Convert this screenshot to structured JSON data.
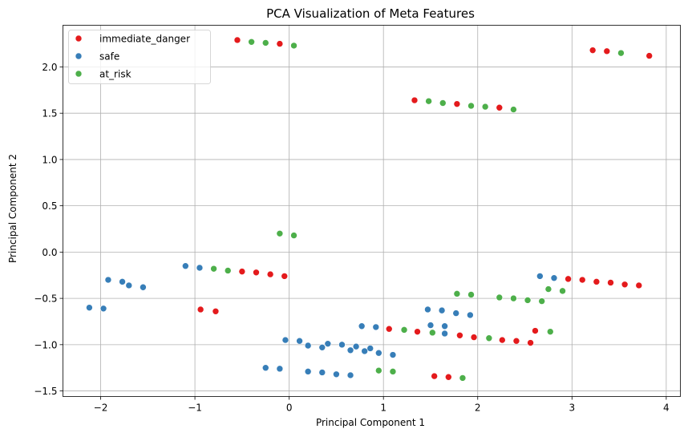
{
  "chart_data": {
    "type": "scatter",
    "title": "PCA Visualization of Meta Features",
    "xlabel": "Principal Component 1",
    "ylabel": "Principal Component 2",
    "xlim": [
      -2.4,
      4.15
    ],
    "ylim": [
      -1.56,
      2.45
    ],
    "xticks": [
      -2,
      -1,
      0,
      1,
      2,
      3,
      4
    ],
    "yticks": [
      -1.5,
      -1.0,
      -0.5,
      0.0,
      0.5,
      1.0,
      1.5,
      2.0
    ],
    "xtick_labels": [
      "−2",
      "−1",
      "0",
      "1",
      "2",
      "3",
      "4"
    ],
    "ytick_labels": [
      "−1.5",
      "−1.0",
      "−0.5",
      "0.0",
      "0.5",
      "1.0",
      "1.5",
      "2.0"
    ],
    "grid": true,
    "legend_position": "top-left",
    "series": [
      {
        "name": "immediate_danger",
        "color": "#e41a1c",
        "points": [
          [
            -0.55,
            2.29
          ],
          [
            -0.1,
            2.25
          ],
          [
            3.22,
            2.18
          ],
          [
            3.37,
            2.17
          ],
          [
            3.82,
            2.12
          ],
          [
            1.33,
            1.64
          ],
          [
            1.78,
            1.6
          ],
          [
            2.23,
            1.56
          ],
          [
            -0.5,
            -0.21
          ],
          [
            -0.35,
            -0.22
          ],
          [
            -0.2,
            -0.24
          ],
          [
            -0.05,
            -0.26
          ],
          [
            -0.94,
            -0.62
          ],
          [
            -0.78,
            -0.64
          ],
          [
            2.96,
            -0.29
          ],
          [
            3.11,
            -0.3
          ],
          [
            3.26,
            -0.32
          ],
          [
            3.41,
            -0.33
          ],
          [
            3.56,
            -0.35
          ],
          [
            3.71,
            -0.36
          ],
          [
            1.06,
            -0.83
          ],
          [
            1.36,
            -0.86
          ],
          [
            1.81,
            -0.9
          ],
          [
            1.96,
            -0.92
          ],
          [
            2.26,
            -0.95
          ],
          [
            2.41,
            -0.96
          ],
          [
            2.56,
            -0.98
          ],
          [
            2.61,
            -0.85
          ],
          [
            1.54,
            -1.34
          ],
          [
            1.69,
            -1.35
          ]
        ]
      },
      {
        "name": "safe",
        "color": "#377eb8",
        "points": [
          [
            -2.12,
            -0.6
          ],
          [
            -1.97,
            -0.61
          ],
          [
            -1.92,
            -0.3
          ],
          [
            -1.77,
            -0.32
          ],
          [
            -1.7,
            -0.36
          ],
          [
            -1.55,
            -0.38
          ],
          [
            -1.1,
            -0.15
          ],
          [
            -0.95,
            -0.17
          ],
          [
            2.66,
            -0.26
          ],
          [
            2.81,
            -0.28
          ],
          [
            1.47,
            -0.62
          ],
          [
            1.62,
            -0.63
          ],
          [
            1.77,
            -0.66
          ],
          [
            1.92,
            -0.68
          ],
          [
            1.5,
            -0.79
          ],
          [
            1.65,
            -0.8
          ],
          [
            1.65,
            -0.88
          ],
          [
            0.77,
            -0.8
          ],
          [
            0.92,
            -0.81
          ],
          [
            -0.04,
            -0.95
          ],
          [
            0.11,
            -0.96
          ],
          [
            0.2,
            -1.01
          ],
          [
            0.35,
            -1.03
          ],
          [
            0.41,
            -0.99
          ],
          [
            0.56,
            -1.0
          ],
          [
            0.65,
            -1.06
          ],
          [
            0.71,
            -1.02
          ],
          [
            0.8,
            -1.07
          ],
          [
            0.86,
            -1.04
          ],
          [
            0.95,
            -1.09
          ],
          [
            1.1,
            -1.11
          ],
          [
            -0.25,
            -1.25
          ],
          [
            -0.1,
            -1.26
          ],
          [
            0.2,
            -1.29
          ],
          [
            0.35,
            -1.3
          ],
          [
            0.5,
            -1.32
          ],
          [
            0.65,
            -1.33
          ]
        ]
      },
      {
        "name": "at_risk",
        "color": "#4daf4a",
        "points": [
          [
            -0.4,
            2.27
          ],
          [
            -0.25,
            2.26
          ],
          [
            0.05,
            2.23
          ],
          [
            3.52,
            2.15
          ],
          [
            1.48,
            1.63
          ],
          [
            1.63,
            1.61
          ],
          [
            1.93,
            1.58
          ],
          [
            2.08,
            1.57
          ],
          [
            2.38,
            1.54
          ],
          [
            -0.1,
            0.2
          ],
          [
            0.05,
            0.18
          ],
          [
            -0.8,
            -0.18
          ],
          [
            -0.65,
            -0.2
          ],
          [
            1.78,
            -0.45
          ],
          [
            1.93,
            -0.46
          ],
          [
            2.23,
            -0.49
          ],
          [
            2.38,
            -0.5
          ],
          [
            2.53,
            -0.52
          ],
          [
            2.68,
            -0.53
          ],
          [
            2.75,
            -0.4
          ],
          [
            2.9,
            -0.42
          ],
          [
            1.22,
            -0.84
          ],
          [
            1.52,
            -0.87
          ],
          [
            2.12,
            -0.93
          ],
          [
            2.77,
            -0.86
          ],
          [
            0.95,
            -1.28
          ],
          [
            1.1,
            -1.29
          ],
          [
            1.84,
            -1.36
          ]
        ]
      }
    ]
  }
}
